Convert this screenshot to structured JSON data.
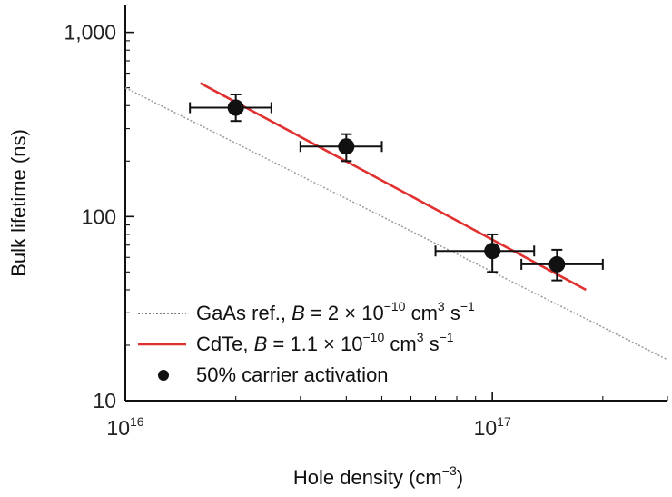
{
  "chart_data": {
    "type": "scatter",
    "x_scale": "log",
    "y_scale": "log",
    "xlim": [
      1e+16,
      3e+17
    ],
    "ylim": [
      10,
      1400
    ],
    "grid": false,
    "legend_position": "bottom-left",
    "xlabel": {
      "main": "Hole density (cm",
      "sup": "−3",
      "tail": ")"
    },
    "ylabel": "Bulk lifetime (ns)",
    "x_ticks": [
      {
        "value": 1e+16,
        "base": "10",
        "exp": "16"
      },
      {
        "value": 1e+17,
        "base": "10",
        "exp": "17"
      }
    ],
    "y_ticks": [
      {
        "value": 10,
        "label": "10"
      },
      {
        "value": 100,
        "label": "100"
      },
      {
        "value": 1000,
        "label": "1,000"
      }
    ],
    "series": [
      {
        "name": "GaAs ref.",
        "kind": "line",
        "style": "dotted",
        "color": "#9a9a9a",
        "x": [
          1e+16,
          3e+17
        ],
        "y": [
          500,
          16.7
        ]
      },
      {
        "name": "CdTe",
        "kind": "line",
        "style": "solid",
        "color": "#e03030",
        "x": [
          1.6e+16,
          1.8e+17
        ],
        "y": [
          530,
          40
        ]
      },
      {
        "name": "50% carrier activation",
        "kind": "scatter",
        "color": "#111111",
        "points": [
          {
            "x": 2e+16,
            "y": 390,
            "xerr": [
              1.5e+16,
              2.5e+16
            ],
            "yerr": [
              330,
              460
            ]
          },
          {
            "x": 4e+16,
            "y": 240,
            "xerr": [
              3e+16,
              5e+16
            ],
            "yerr": [
              200,
              280
            ]
          },
          {
            "x": 1e+17,
            "y": 65,
            "xerr": [
              7e+16,
              1.3e+17
            ],
            "yerr": [
              50,
              80
            ]
          },
          {
            "x": 1.5e+17,
            "y": 55,
            "xerr": [
              1.2e+17,
              2e+17
            ],
            "yerr": [
              45,
              66
            ]
          }
        ]
      }
    ],
    "legend": [
      {
        "marker": "dotted-line",
        "color": "#555555",
        "prefix": "GaAs ref., ",
        "var": "B",
        "eq": " = 2 × 10",
        "exp": "−10",
        "unit": " cm",
        "unit_exp": "3",
        "tail": " s",
        "tail_exp": "−1"
      },
      {
        "marker": "solid-line",
        "color": "#e03030",
        "prefix": "CdTe, ",
        "var": "B",
        "eq": " = 1.1 × 10",
        "exp": "−10",
        "unit": " cm",
        "unit_exp": "3",
        "tail": " s",
        "tail_exp": "−1"
      },
      {
        "marker": "dot",
        "color": "#111111",
        "text": "50% carrier activation"
      }
    ]
  }
}
